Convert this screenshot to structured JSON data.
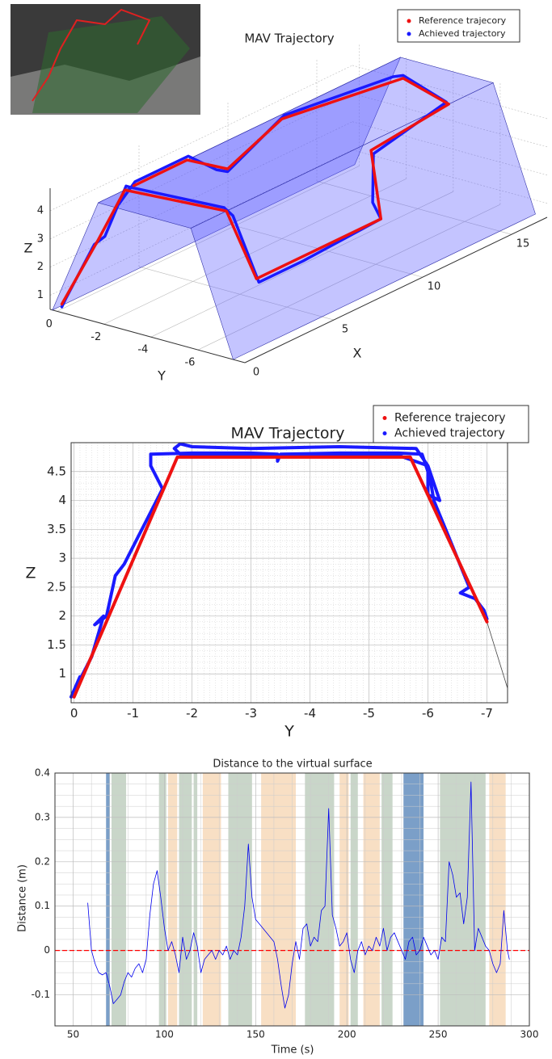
{
  "chart_data": [
    {
      "type": "line3d",
      "title": "MAV Trajectory",
      "xlabel": "X",
      "ylabel": "Y",
      "zlabel": "Z",
      "xlim": [
        0,
        17
      ],
      "ylim": [
        -8,
        0.3
      ],
      "zlim": [
        0.5,
        4.8
      ],
      "xticks": [
        0,
        5,
        10,
        15
      ],
      "yticks": [
        0,
        -2,
        -4,
        -6
      ],
      "zticks": [
        1,
        2,
        3,
        4
      ],
      "grid": true,
      "surface": {
        "y": [
          0.2,
          -1.75,
          -5.7,
          -7.5
        ],
        "z": [
          0.5,
          4.75,
          4.75,
          0.5
        ],
        "color": "#5555ff"
      },
      "series": [
        {
          "name": "Achieved trajectory",
          "color": "#1a1aff",
          "x": [
            0,
            0.1,
            0.9,
            1.1,
            1.5,
            1.6,
            2,
            2.1,
            2.5,
            5,
            9.5,
            9.3,
            10,
            14.5,
            15.5,
            15.2,
            10,
            8,
            7.5,
            5,
            2,
            1.5
          ],
          "y": [
            -0.2,
            -0.3,
            -0.9,
            -1.2,
            -1.8,
            -1.9,
            -5.6,
            -5.9,
            -6.7,
            -6.7,
            -6.6,
            -6.4,
            -5.9,
            -5.6,
            -3.0,
            -2.8,
            -2.1,
            -1.2,
            -1.1,
            -1.8,
            -1.8,
            -1.5
          ],
          "z": [
            0.7,
            1.0,
            2.8,
            3.1,
            4.9,
            4.85,
            4.85,
            4.6,
            2.3,
            2.3,
            2.4,
            3.0,
            4.4,
            4.8,
            4.85,
            4.85,
            4.9,
            3.3,
            3.5,
            4.9,
            4.9,
            4.2
          ]
        },
        {
          "name": "Reference trajecory",
          "color": "#ee1111",
          "x": [
            0,
            1,
            1.5,
            2,
            2.5,
            9.5,
            10,
            14.5,
            15.5,
            10,
            8,
            5,
            2
          ],
          "y": [
            -0.2,
            -1.0,
            -1.75,
            -5.7,
            -6.6,
            -6.6,
            -5.8,
            -5.7,
            -3,
            -2,
            -1.2,
            -1.75,
            -1.75
          ],
          "z": [
            0.8,
            2.97,
            4.75,
            4.75,
            2.4,
            2.4,
            4.5,
            4.75,
            4.75,
            4.75,
            3.4,
            4.75,
            4.75
          ]
        }
      ]
    },
    {
      "type": "line",
      "title": "MAV Trajectory",
      "xlabel": "Y",
      "ylabel": "Z",
      "xlim": [
        0.05,
        -7.35
      ],
      "ylim": [
        0.5,
        5.0
      ],
      "xticks": [
        0,
        -1,
        -2,
        -3,
        -4,
        -5,
        -6,
        -7
      ],
      "yticks": [
        1,
        1.5,
        2,
        2.5,
        3,
        3.5,
        4,
        4.5
      ],
      "grid": true,
      "series": [
        {
          "color": "#444444",
          "x": [
            -7.0,
            -7.35
          ],
          "values": [
            1.9,
            0.75
          ]
        },
        {
          "name": "Achieved trajectory",
          "color": "#1a1aff",
          "x": [
            0.05,
            -0.1,
            0.05,
            -0.3,
            -0.5,
            -0.35,
            -0.55,
            -0.7,
            -0.85,
            -1.1,
            -1.3,
            -1.5,
            -1.3,
            -1.3,
            -2.0,
            -3.0,
            -3.45,
            -3.45,
            -3.5,
            -4.5,
            -5.5,
            -5.9,
            -6.0,
            -6.0,
            -6.2,
            -6.0,
            -5.8,
            -4.5,
            -3.0,
            -2.0,
            -1.8,
            -1.7,
            -1.8,
            -4.0,
            -5.5,
            -6.0,
            -6.1,
            -6.3,
            -6.5,
            -6.7,
            -6.55,
            -6.8,
            -6.95,
            -7.0
          ],
          "values": [
            0.6,
            0.95,
            0.6,
            1.3,
            2.0,
            1.85,
            2.0,
            2.7,
            2.9,
            3.4,
            3.8,
            4.2,
            4.6,
            4.8,
            4.82,
            4.82,
            4.8,
            4.68,
            4.8,
            4.82,
            4.82,
            4.8,
            4.5,
            4.1,
            4.0,
            4.6,
            4.9,
            4.93,
            4.9,
            4.93,
            4.98,
            4.9,
            4.8,
            4.78,
            4.78,
            4.6,
            4.0,
            3.5,
            3.0,
            2.5,
            2.4,
            2.3,
            2.1,
            1.95
          ]
        },
        {
          "name": "Reference trajecory",
          "color": "#ee1111",
          "x": [
            0,
            -1.75,
            -5.7,
            -7.0
          ],
          "values": [
            0.6,
            4.75,
            4.75,
            1.9
          ]
        }
      ]
    },
    {
      "type": "line",
      "title": "Distance to the virtual surface",
      "xlabel": "Time (s)",
      "ylabel": "Distance (m)",
      "xlim": [
        40,
        300
      ],
      "ylim": [
        -0.17,
        0.4
      ],
      "xticks": [
        50,
        100,
        150,
        200,
        250,
        300
      ],
      "yticks": [
        -0.1,
        0,
        0.1,
        0.2,
        0.3,
        0.4
      ],
      "grid": true,
      "spans": [
        {
          "start": 68,
          "end": 70,
          "color": "#7b9fc8"
        },
        {
          "start": 71,
          "end": 79,
          "color": "#c9d6c9"
        },
        {
          "start": 97,
          "end": 101,
          "color": "#c9d6c9"
        },
        {
          "start": 102,
          "end": 107,
          "color": "#f8dfc4"
        },
        {
          "start": 108,
          "end": 115,
          "color": "#c9d6c9"
        },
        {
          "start": 116,
          "end": 118,
          "color": "#c9d6c9"
        },
        {
          "start": 121,
          "end": 131,
          "color": "#f8dfc4"
        },
        {
          "start": 135,
          "end": 148,
          "color": "#c9d6c9"
        },
        {
          "start": 153,
          "end": 172,
          "color": "#f8dfc4"
        },
        {
          "start": 177,
          "end": 193,
          "color": "#c9d6c9"
        },
        {
          "start": 196,
          "end": 201,
          "color": "#f8dfc4"
        },
        {
          "start": 202,
          "end": 206,
          "color": "#c9d6c9"
        },
        {
          "start": 209,
          "end": 218,
          "color": "#f8dfc4"
        },
        {
          "start": 219,
          "end": 225,
          "color": "#c9d6c9"
        },
        {
          "start": 231,
          "end": 242,
          "color": "#7b9fc8"
        },
        {
          "start": 251,
          "end": 276,
          "color": "#c9d6c9"
        },
        {
          "start": 278,
          "end": 287,
          "color": "#f8dfc4"
        }
      ],
      "hline": {
        "value": 0,
        "color": "#ff0000"
      },
      "series": [
        {
          "color": "#0000ee",
          "x": [
            58,
            60,
            62,
            64,
            66,
            68,
            70,
            72,
            74,
            76,
            78,
            80,
            82,
            84,
            86,
            88,
            90,
            92,
            94,
            96,
            98,
            100,
            102,
            104,
            106,
            108,
            110,
            112,
            114,
            116,
            118,
            120,
            122,
            124,
            126,
            128,
            130,
            132,
            134,
            136,
            138,
            140,
            142,
            144,
            146,
            148,
            150,
            152,
            154,
            156,
            158,
            160,
            162,
            164,
            166,
            168,
            170,
            172,
            174,
            176,
            178,
            180,
            182,
            184,
            186,
            188,
            190,
            192,
            194,
            196,
            198,
            200,
            202,
            204,
            206,
            208,
            210,
            212,
            214,
            216,
            218,
            220,
            222,
            224,
            226,
            228,
            230,
            232,
            234,
            236,
            238,
            240,
            242,
            244,
            246,
            248,
            250,
            252,
            254,
            256,
            258,
            260,
            262,
            264,
            266,
            268,
            270,
            272,
            274,
            276,
            278,
            280,
            282,
            284,
            286,
            288,
            289
          ],
          "values": [
            0.107,
            0.0,
            -0.03,
            -0.05,
            -0.055,
            -0.05,
            -0.08,
            -0.12,
            -0.11,
            -0.1,
            -0.07,
            -0.05,
            -0.06,
            -0.04,
            -0.03,
            -0.05,
            -0.02,
            0.08,
            0.15,
            0.18,
            0.12,
            0.05,
            0.0,
            0.02,
            -0.01,
            -0.05,
            0.03,
            -0.02,
            0.0,
            0.04,
            0.01,
            -0.05,
            -0.02,
            -0.01,
            0.0,
            -0.02,
            0.0,
            -0.01,
            0.01,
            -0.02,
            0.0,
            -0.01,
            0.03,
            0.1,
            0.24,
            0.12,
            0.07,
            0.06,
            0.05,
            0.04,
            0.03,
            0.02,
            -0.02,
            -0.08,
            -0.13,
            -0.1,
            -0.03,
            0.02,
            -0.02,
            0.05,
            0.06,
            0.01,
            0.03,
            0.02,
            0.09,
            0.1,
            0.32,
            0.08,
            0.05,
            0.01,
            0.02,
            0.04,
            -0.02,
            -0.05,
            0.0,
            0.02,
            -0.01,
            0.01,
            0.0,
            0.03,
            0.01,
            0.05,
            0.0,
            0.03,
            0.04,
            0.02,
            0.0,
            -0.02,
            0.02,
            0.03,
            -0.01,
            0.0,
            0.03,
            0.01,
            -0.01,
            0.0,
            -0.02,
            0.03,
            0.02,
            0.2,
            0.17,
            0.12,
            0.13,
            0.06,
            0.12,
            0.38,
            0.0,
            0.05,
            0.03,
            0.01,
            0.0,
            -0.03,
            -0.05,
            -0.03,
            0.09,
            0.0,
            -0.02
          ]
        }
      ]
    }
  ]
}
